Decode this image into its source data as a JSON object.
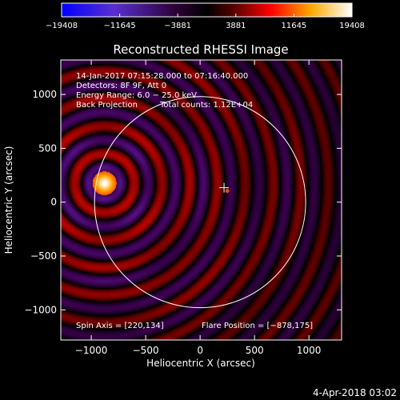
{
  "colorbar": {
    "ticks": [
      {
        "value": -19408,
        "label": "−19408"
      },
      {
        "value": -11645,
        "label": "−11645"
      },
      {
        "value": -3881,
        "label": "−3881"
      },
      {
        "value": 3881,
        "label": "3881"
      },
      {
        "value": 11645,
        "label": "11645"
      },
      {
        "value": 19408,
        "label": "19408"
      }
    ],
    "range": [
      -19408,
      19408
    ]
  },
  "chart_data": {
    "type": "heatmap",
    "title": "Reconstructed RHESSI Image",
    "xlabel": "Heliocentric X (arcsec)",
    "ylabel": "Heliocentric Y (arcsec)",
    "xlim": [
      -1280,
      1300
    ],
    "ylim": [
      -1280,
      1320
    ],
    "xticks": [
      {
        "value": -1000,
        "label": "−1000"
      },
      {
        "value": -500,
        "label": "−500"
      },
      {
        "value": 0,
        "label": "0"
      },
      {
        "value": 500,
        "label": "500"
      },
      {
        "value": 1000,
        "label": "1000"
      }
    ],
    "yticks": [
      {
        "value": -1000,
        "label": "−1000"
      },
      {
        "value": -500,
        "label": "−500"
      },
      {
        "value": 0,
        "label": "0"
      },
      {
        "value": 500,
        "label": "500"
      },
      {
        "value": 1000,
        "label": "1000"
      }
    ],
    "solar_disk": {
      "center": [
        0,
        0
      ],
      "radius": 970
    },
    "source": {
      "x": -878,
      "y": 175,
      "peak": 19408
    },
    "spin_axis_marker": {
      "x": 220,
      "y": 134
    },
    "annotations": {
      "time_range": "14-Jan-2017 07:15:28.000 to 07:16:40.000",
      "detectors": "Detectors: 8F 9F, Att 0",
      "energy": "Energy Range: 6.0 − 25.0 keV",
      "method": "Back Projection",
      "counts": "Total counts: 1.12E+04",
      "spin_axis": "Spin Axis = [220,134]",
      "flare_position": "Flare Position = [−878,175]"
    },
    "colors": {
      "negative": "#2a00ff",
      "zero": "#000000",
      "positive": "#ff2200",
      "peak": "#ffffff"
    }
  },
  "footer": {
    "date": "4-Apr-2018 03:02"
  }
}
